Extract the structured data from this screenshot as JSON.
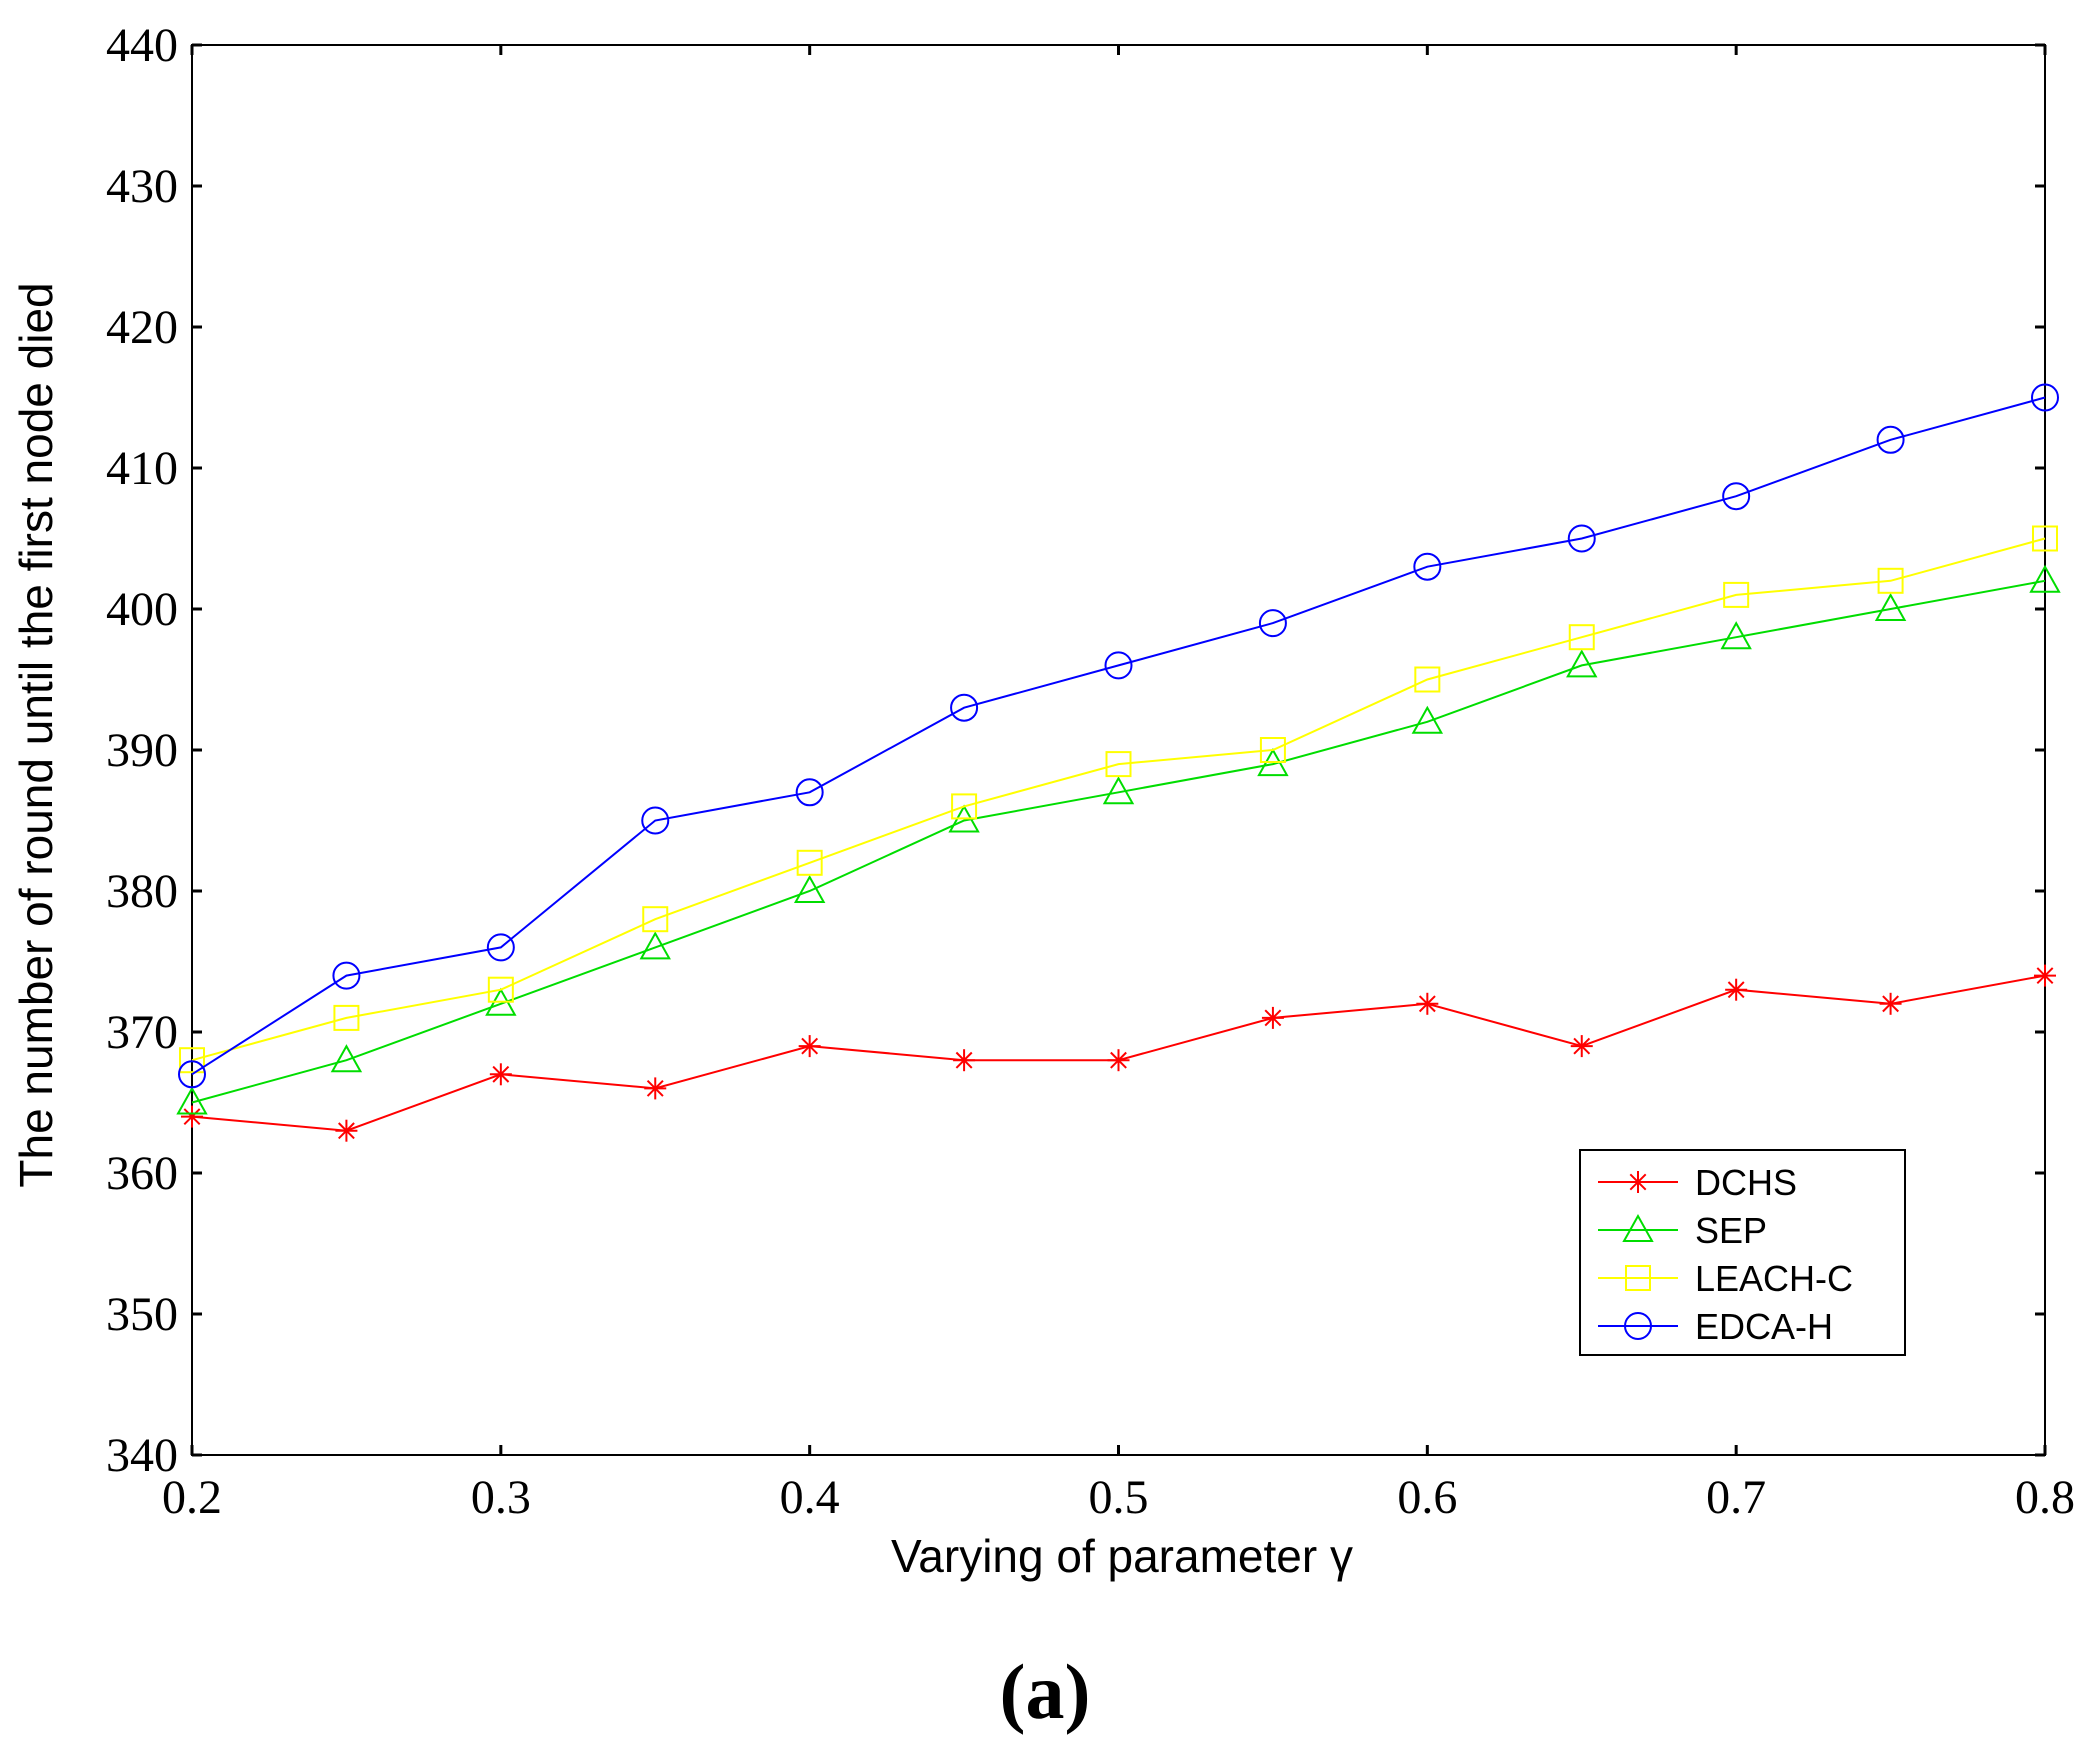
{
  "chart_data": {
    "type": "line",
    "title": "",
    "xlabel": "Varying of parameter γ",
    "ylabel": "The number of round until the first node died",
    "panel_label": "(a)",
    "xlim": [
      0.2,
      0.8
    ],
    "ylim": [
      340,
      440
    ],
    "grid": false,
    "legend_position": "lower-right",
    "x": [
      0.2,
      0.25,
      0.3,
      0.35,
      0.4,
      0.45,
      0.5,
      0.55,
      0.6,
      0.65,
      0.7,
      0.75,
      0.8
    ],
    "x_tick_labels": [
      "0.2",
      "0.3",
      "0.4",
      "0.5",
      "0.6",
      "0.7",
      "0.8"
    ],
    "y_tick_labels": [
      "340",
      "350",
      "360",
      "370",
      "380",
      "390",
      "400",
      "410",
      "420",
      "430",
      "440"
    ],
    "series": [
      {
        "name": "DCHS",
        "color": "#ff0000",
        "marker": "star",
        "values": [
          364,
          363,
          367,
          366,
          369,
          368,
          368,
          371,
          372,
          369,
          373,
          372,
          374
        ]
      },
      {
        "name": "SEP",
        "color": "#00dd00",
        "marker": "triangle",
        "values": [
          365,
          368,
          372,
          376,
          380,
          385,
          387,
          389,
          392,
          396,
          398,
          400,
          402
        ]
      },
      {
        "name": "LEACH-C",
        "color": "#ffff00",
        "marker": "square",
        "values": [
          368,
          371,
          373,
          378,
          382,
          386,
          389,
          390,
          395,
          398,
          401,
          402,
          405
        ]
      },
      {
        "name": "EDCA-H",
        "color": "#0000ff",
        "marker": "circle",
        "values": [
          367,
          374,
          376,
          385,
          387,
          393,
          396,
          399,
          403,
          405,
          408,
          412,
          415
        ]
      }
    ]
  }
}
